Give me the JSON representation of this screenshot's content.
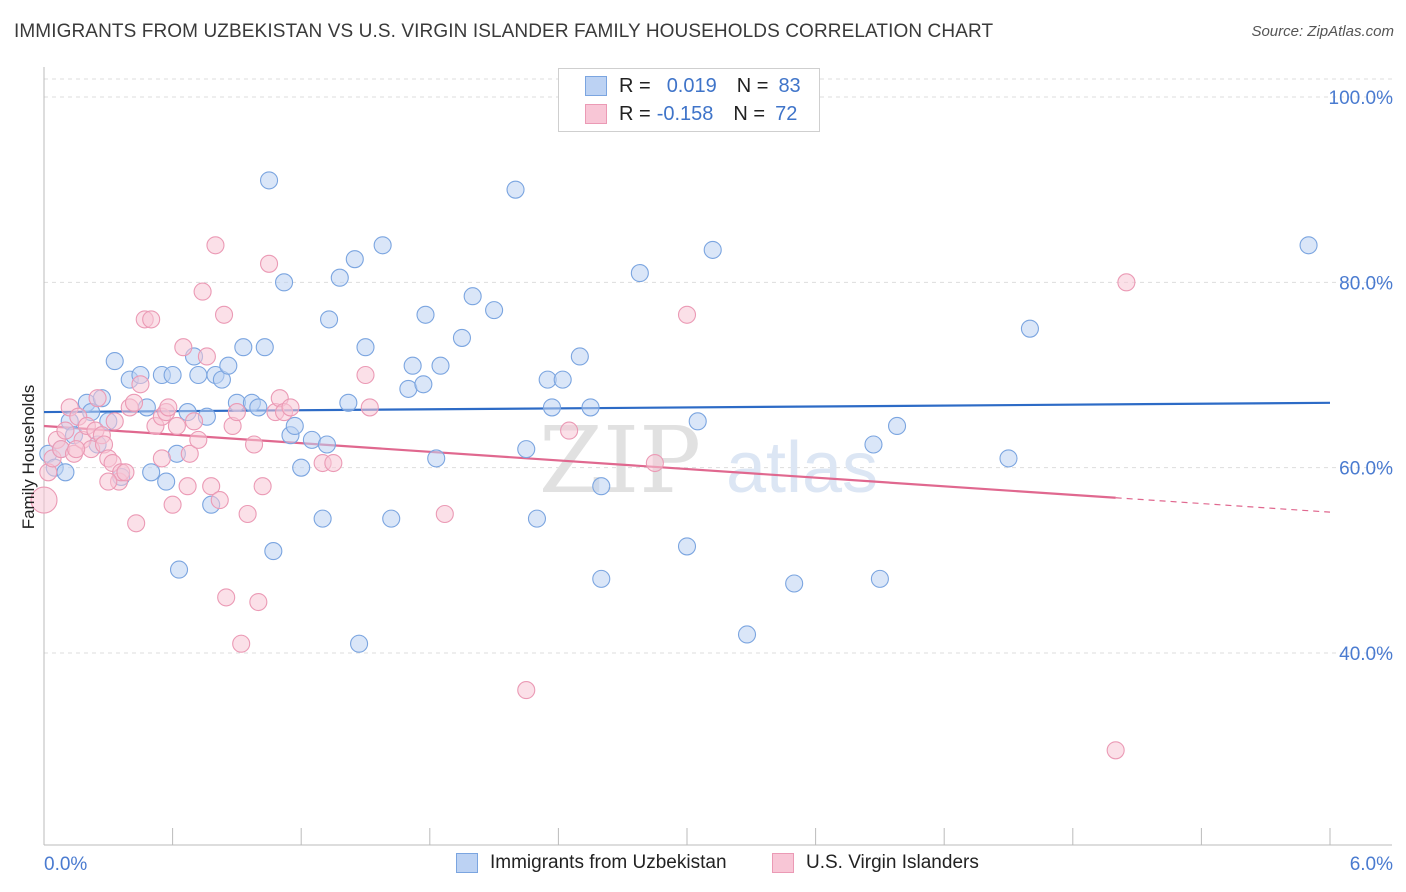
{
  "header": {
    "title": "IMMIGRANTS FROM UZBEKISTAN VS U.S. VIRGIN ISLANDER FAMILY HOUSEHOLDS CORRELATION CHART",
    "source": "Source: ZipAtlas.com"
  },
  "legend": {
    "r_label": "R =",
    "n_label": "N =",
    "rows": [
      {
        "r": "0.019",
        "n": "83"
      },
      {
        "r": "-0.158",
        "n": "72"
      }
    ]
  },
  "watermark": {
    "zip": "ZIP",
    "atlas": "atlas"
  },
  "colors": {
    "blue": "#7ba5e0",
    "blue_fill": "#bcd2f3",
    "blue_line": "#2d6bc6",
    "pink": "#eb9ab5",
    "pink_fill": "#f8c6d6",
    "pink_line": "#e0688f",
    "tick": "#4a7bd0"
  },
  "chart_data": {
    "type": "scatter",
    "title": "IMMIGRANTS FROM UZBEKISTAN VS U.S. VIRGIN ISLANDER FAMILY HOUSEHOLDS CORRELATION CHART",
    "xlabel": "",
    "ylabel": "Family Households",
    "xlim": [
      0,
      6
    ],
    "ylim": [
      20,
      102
    ],
    "x_tick_labels": [
      "0.0%",
      "6.0%"
    ],
    "y_ticks": [
      40,
      60,
      80,
      100
    ],
    "y_tick_labels": [
      "40.0%",
      "60.0%",
      "80.0%",
      "100.0%"
    ],
    "grid": true,
    "legend_position": "top-center",
    "series": [
      {
        "name": "Immigrants from Uzbekistan",
        "r": 0.019,
        "n": 83,
        "trend": {
          "x": [
            0,
            6
          ],
          "y": [
            66.0,
            67.0
          ],
          "solid_to": 6
        },
        "points": [
          [
            0.02,
            61.5
          ],
          [
            0.05,
            60
          ],
          [
            0.08,
            62
          ],
          [
            0.1,
            59.5
          ],
          [
            0.12,
            65
          ],
          [
            0.14,
            63.5
          ],
          [
            0.2,
            67
          ],
          [
            0.22,
            66
          ],
          [
            0.25,
            62.5
          ],
          [
            0.27,
            67.5
          ],
          [
            0.3,
            65
          ],
          [
            0.33,
            71.5
          ],
          [
            0.36,
            59
          ],
          [
            0.4,
            69.5
          ],
          [
            0.45,
            70
          ],
          [
            0.48,
            66.5
          ],
          [
            0.5,
            59.5
          ],
          [
            0.55,
            70
          ],
          [
            0.57,
            58.5
          ],
          [
            0.6,
            70
          ],
          [
            0.62,
            61.5
          ],
          [
            0.63,
            49
          ],
          [
            0.67,
            66
          ],
          [
            0.7,
            72
          ],
          [
            0.72,
            70
          ],
          [
            0.76,
            65.5
          ],
          [
            0.78,
            56
          ],
          [
            0.8,
            70
          ],
          [
            0.83,
            69.5
          ],
          [
            0.86,
            71
          ],
          [
            0.9,
            67
          ],
          [
            0.93,
            73
          ],
          [
            0.97,
            67
          ],
          [
            1.0,
            66.5
          ],
          [
            1.03,
            73
          ],
          [
            1.05,
            91
          ],
          [
            1.07,
            51
          ],
          [
            1.12,
            80
          ],
          [
            1.15,
            63.5
          ],
          [
            1.17,
            64.5
          ],
          [
            1.2,
            60
          ],
          [
            1.25,
            63
          ],
          [
            1.3,
            54.5
          ],
          [
            1.32,
            62.5
          ],
          [
            1.33,
            76
          ],
          [
            1.38,
            80.5
          ],
          [
            1.42,
            67
          ],
          [
            1.45,
            82.5
          ],
          [
            1.47,
            41
          ],
          [
            1.5,
            73
          ],
          [
            1.58,
            84
          ],
          [
            1.62,
            54.5
          ],
          [
            1.7,
            68.5
          ],
          [
            1.72,
            71
          ],
          [
            1.77,
            69
          ],
          [
            1.78,
            76.5
          ],
          [
            1.83,
            61
          ],
          [
            1.85,
            71
          ],
          [
            1.95,
            74
          ],
          [
            2.0,
            78.5
          ],
          [
            2.1,
            77
          ],
          [
            2.2,
            90
          ],
          [
            2.25,
            62
          ],
          [
            2.3,
            54.5
          ],
          [
            2.35,
            69.5
          ],
          [
            2.37,
            66.5
          ],
          [
            2.42,
            69.5
          ],
          [
            2.5,
            72
          ],
          [
            2.55,
            66.5
          ],
          [
            2.6,
            48
          ],
          [
            2.6,
            58
          ],
          [
            2.78,
            81
          ],
          [
            3.0,
            51.5
          ],
          [
            3.05,
            65
          ],
          [
            3.12,
            83.5
          ],
          [
            3.28,
            42
          ],
          [
            3.5,
            47.5
          ],
          [
            3.87,
            62.5
          ],
          [
            3.9,
            48
          ],
          [
            3.98,
            64.5
          ],
          [
            4.5,
            61
          ],
          [
            4.6,
            75
          ],
          [
            5.9,
            84
          ]
        ]
      },
      {
        "name": "U.S. Virgin Islanders",
        "r": -0.158,
        "n": 72,
        "trend": {
          "x": [
            0,
            6
          ],
          "y": [
            64.5,
            55.2
          ],
          "solid_to": 5.0
        },
        "points": [
          [
            0.0,
            56.5
          ],
          [
            0.02,
            59.5
          ],
          [
            0.04,
            61
          ],
          [
            0.06,
            63
          ],
          [
            0.08,
            62
          ],
          [
            0.1,
            64
          ],
          [
            0.12,
            66.5
          ],
          [
            0.14,
            61.5
          ],
          [
            0.16,
            65.5
          ],
          [
            0.18,
            63
          ],
          [
            0.2,
            64.5
          ],
          [
            0.22,
            62
          ],
          [
            0.24,
            64
          ],
          [
            0.25,
            67.5
          ],
          [
            0.27,
            63.5
          ],
          [
            0.28,
            62.5
          ],
          [
            0.3,
            61
          ],
          [
            0.32,
            60.5
          ],
          [
            0.33,
            65
          ],
          [
            0.35,
            58.5
          ],
          [
            0.36,
            59.5
          ],
          [
            0.38,
            59.5
          ],
          [
            0.4,
            66.5
          ],
          [
            0.42,
            67
          ],
          [
            0.43,
            54
          ],
          [
            0.45,
            69
          ],
          [
            0.47,
            76
          ],
          [
            0.5,
            76
          ],
          [
            0.52,
            64.5
          ],
          [
            0.55,
            65.5
          ],
          [
            0.57,
            66
          ],
          [
            0.58,
            66.5
          ],
          [
            0.6,
            56
          ],
          [
            0.62,
            64.5
          ],
          [
            0.65,
            73
          ],
          [
            0.67,
            58
          ],
          [
            0.68,
            61.5
          ],
          [
            0.7,
            65
          ],
          [
            0.72,
            63
          ],
          [
            0.74,
            79
          ],
          [
            0.76,
            72
          ],
          [
            0.78,
            58
          ],
          [
            0.8,
            84
          ],
          [
            0.82,
            56.5
          ],
          [
            0.84,
            76.5
          ],
          [
            0.85,
            46
          ],
          [
            0.88,
            64.5
          ],
          [
            0.9,
            66
          ],
          [
            0.92,
            41
          ],
          [
            0.95,
            55
          ],
          [
            0.98,
            62.5
          ],
          [
            1.0,
            45.5
          ],
          [
            1.02,
            58
          ],
          [
            1.05,
            82
          ],
          [
            1.08,
            66
          ],
          [
            1.1,
            67.5
          ],
          [
            1.12,
            66
          ],
          [
            1.15,
            66.5
          ],
          [
            1.3,
            60.5
          ],
          [
            1.35,
            60.5
          ],
          [
            1.5,
            70
          ],
          [
            1.52,
            66.5
          ],
          [
            1.87,
            55
          ],
          [
            2.25,
            36
          ],
          [
            2.45,
            64
          ],
          [
            2.85,
            60.5
          ],
          [
            3.0,
            76.5
          ],
          [
            5.0,
            29.5
          ],
          [
            5.05,
            80
          ],
          [
            0.3,
            58.5
          ],
          [
            0.15,
            62
          ],
          [
            0.55,
            61
          ]
        ]
      }
    ]
  },
  "bottom_legend": [
    {
      "label": "Immigrants from Uzbekistan"
    },
    {
      "label": "U.S. Virgin Islanders"
    }
  ]
}
